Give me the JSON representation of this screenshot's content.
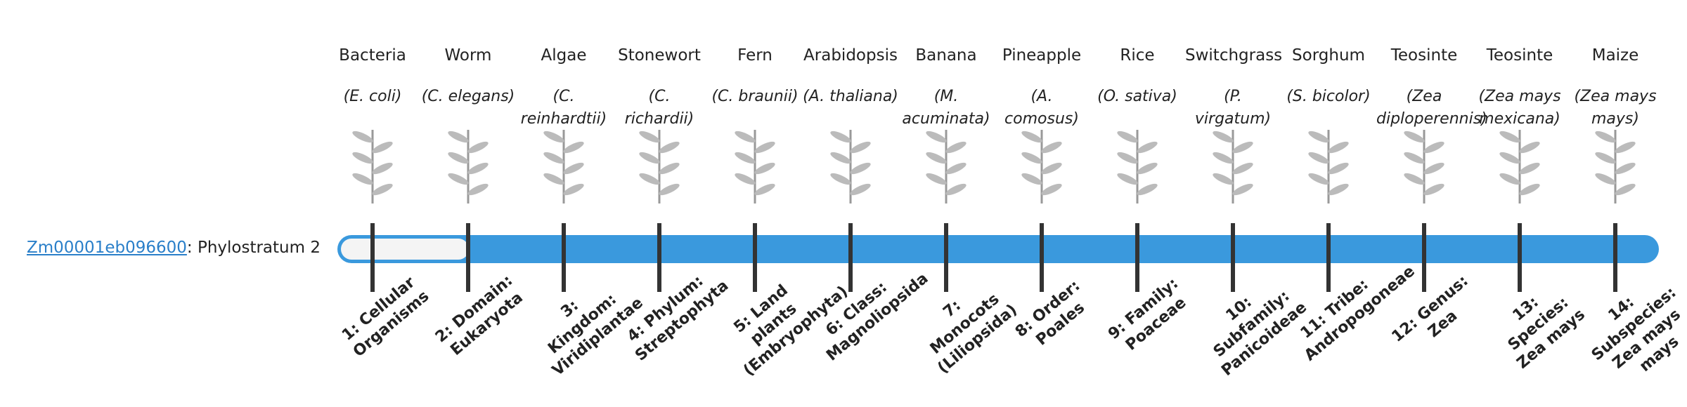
{
  "gene": {
    "id": "Zm00001eb096600",
    "label": ": Phylostratum 2"
  },
  "organisms": [
    {
      "name": "Bacteria",
      "species": "(E. coli)"
    },
    {
      "name": "Worm",
      "species": "(C. elegans)"
    },
    {
      "name": "Algae",
      "species": "(C. reinhardtii)"
    },
    {
      "name": "Stonewort",
      "species": "(C. richardii)"
    },
    {
      "name": "Fern",
      "species": "(C. braunii)"
    },
    {
      "name": "Arabidopsis",
      "species": "(A. thaliana)"
    },
    {
      "name": "Banana",
      "species": "(M. acuminata)"
    },
    {
      "name": "Pineapple",
      "species": "(A. comosus)"
    },
    {
      "name": "Rice",
      "species": "(O. sativa)"
    },
    {
      "name": "Switchgrass",
      "species": "(P. virgatum)"
    },
    {
      "name": "Sorghum",
      "species": "(S. bicolor)"
    },
    {
      "name": "Teosinte",
      "species": "(Zea diploperennis)"
    },
    {
      "name": "Teosinte",
      "species": "(Zea mays mexicana)"
    },
    {
      "name": "Maize",
      "species": "(Zea mays mays)"
    }
  ],
  "strata": [
    "1: Cellular Organisms",
    "2: Domain: Eukaryota",
    "3: Kingdom: Viridiplantae",
    "4: Phylum: Streptophyta",
    "5: Land plants (Embryophyta)",
    "6: Class: Magnoliopsida",
    "7: Monocots (Liliopsida)",
    "8: Order: Poales",
    "9: Family: Poaceae",
    "10: Subfamily: Panicoideae",
    "11: Tribe: Andropogoneae",
    "12: Genus: Zea",
    "13: Species: Zea mays",
    "14: Subspecies: Zea mays mays"
  ]
}
